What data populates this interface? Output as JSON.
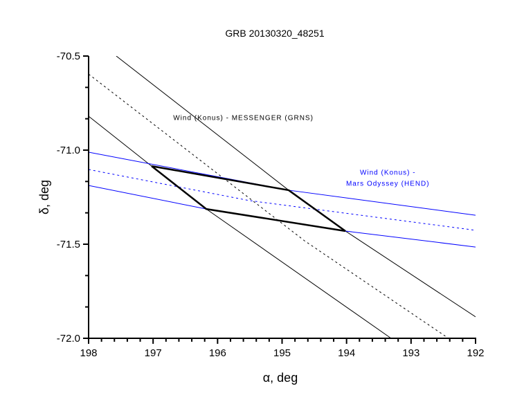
{
  "chart_data": {
    "type": "line",
    "title": "GRB 20130320_48251",
    "xlabel": "α, deg",
    "ylabel": "δ, deg",
    "xlim": [
      198,
      192
    ],
    "ylim": [
      -72.0,
      -70.5
    ],
    "x_ticks": [
      "198",
      "197",
      "196",
      "195",
      "194",
      "193",
      "192"
    ],
    "x_tick_values": [
      198,
      197,
      196,
      195,
      194,
      193,
      192
    ],
    "y_ticks": [
      "-70.5",
      "-71.0",
      "-71.5",
      "-72.0"
    ],
    "y_tick_values": [
      -70.5,
      -71.0,
      -71.5,
      -72.0
    ],
    "grid": false,
    "series": [
      {
        "name": "Wind-MESSENGER annulus outer",
        "color": "#000000",
        "style": "solid",
        "x": [
          197.571,
          194.898,
          194.018,
          192.0
        ],
        "y": [
          -70.5,
          -71.213,
          -71.43,
          -71.886
        ]
      },
      {
        "name": "Wind-MESSENGER annulus center",
        "color": "#000000",
        "style": "dashed",
        "x": [
          198.0,
          194.651,
          192.42
        ],
        "y": [
          -70.596,
          -71.482,
          -72.0
        ]
      },
      {
        "name": "Wind-MESSENGER annulus inner",
        "color": "#000000",
        "style": "solid",
        "x": [
          198.0,
          197.023,
          196.175,
          193.31
        ],
        "y": [
          -70.82,
          -71.085,
          -71.313,
          -72.0
        ]
      },
      {
        "name": "Wind-Mars Odyssey annulus upper",
        "color": "#0000ff",
        "style": "solid",
        "x": [
          198.0,
          194.898,
          192.0
        ],
        "y": [
          -71.011,
          -71.213,
          -71.346
        ]
      },
      {
        "name": "Wind-Mars Odyssey annulus center",
        "color": "#0000ff",
        "style": "dashed",
        "x": [
          198.0,
          195.51,
          192.0
        ],
        "y": [
          -71.103,
          -71.268,
          -71.426
        ]
      },
      {
        "name": "Wind-Mars Odyssey annulus lower",
        "color": "#0000ff",
        "style": "solid",
        "x": [
          198.0,
          196.175,
          194.018,
          192.0
        ],
        "y": [
          -71.188,
          -71.313,
          -71.43,
          -71.515
        ]
      },
      {
        "name": "Error box",
        "color": "#000000",
        "style": "bold",
        "x": [
          197.023,
          194.898,
          194.018,
          196.175,
          197.023
        ],
        "y": [
          -71.085,
          -71.213,
          -71.43,
          -71.313,
          -71.085
        ]
      }
    ],
    "annotations": [
      {
        "text": "Wind (Konus) - MESSENGER (GRNS)",
        "color": "#000000",
        "x": 195.6,
        "y": -70.84
      },
      {
        "text": "Wind (Konus) -",
        "color": "#0000ff",
        "x": 193.36,
        "y": -71.13
      },
      {
        "text": "Mars Odyssey (HEND)",
        "color": "#0000ff",
        "x": 193.36,
        "y": -71.19
      }
    ]
  }
}
